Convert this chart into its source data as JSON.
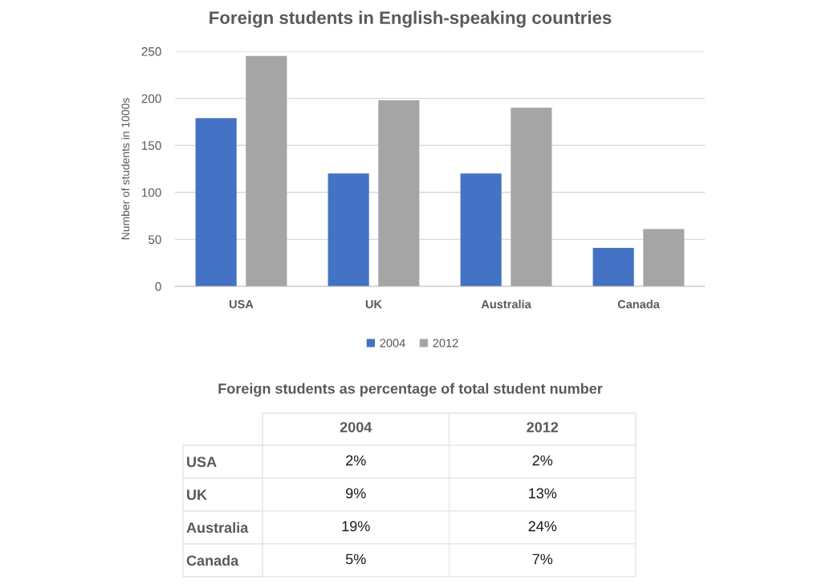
{
  "chart_data": [
    {
      "type": "bar",
      "title": "Foreign students in English-speaking countries",
      "ylabel": "Number of students in 1000s",
      "categories": [
        "USA",
        "UK",
        "Australia",
        "Canada"
      ],
      "series": [
        {
          "name": "2004",
          "color": "#4472c4",
          "values": [
            179,
            120,
            120,
            41
          ]
        },
        {
          "name": "2012",
          "color": "#a5a5a5",
          "values": [
            245,
            198,
            190,
            61
          ]
        }
      ],
      "ylim": [
        0,
        250
      ],
      "yticks": [
        0,
        50,
        100,
        150,
        200,
        250
      ],
      "grid": "y",
      "legend": "bottom"
    },
    {
      "type": "heatmap",
      "title": "Foreign students as percentage of total student number",
      "categories": [
        "2004",
        "2012"
      ],
      "y_categories": [
        "USA",
        "UK",
        "Australia",
        "Canada"
      ],
      "cells": [
        [
          "2%",
          "2%"
        ],
        [
          "9%",
          "13%"
        ],
        [
          "19%",
          "24%"
        ],
        [
          "5%",
          "7%"
        ]
      ]
    }
  ]
}
